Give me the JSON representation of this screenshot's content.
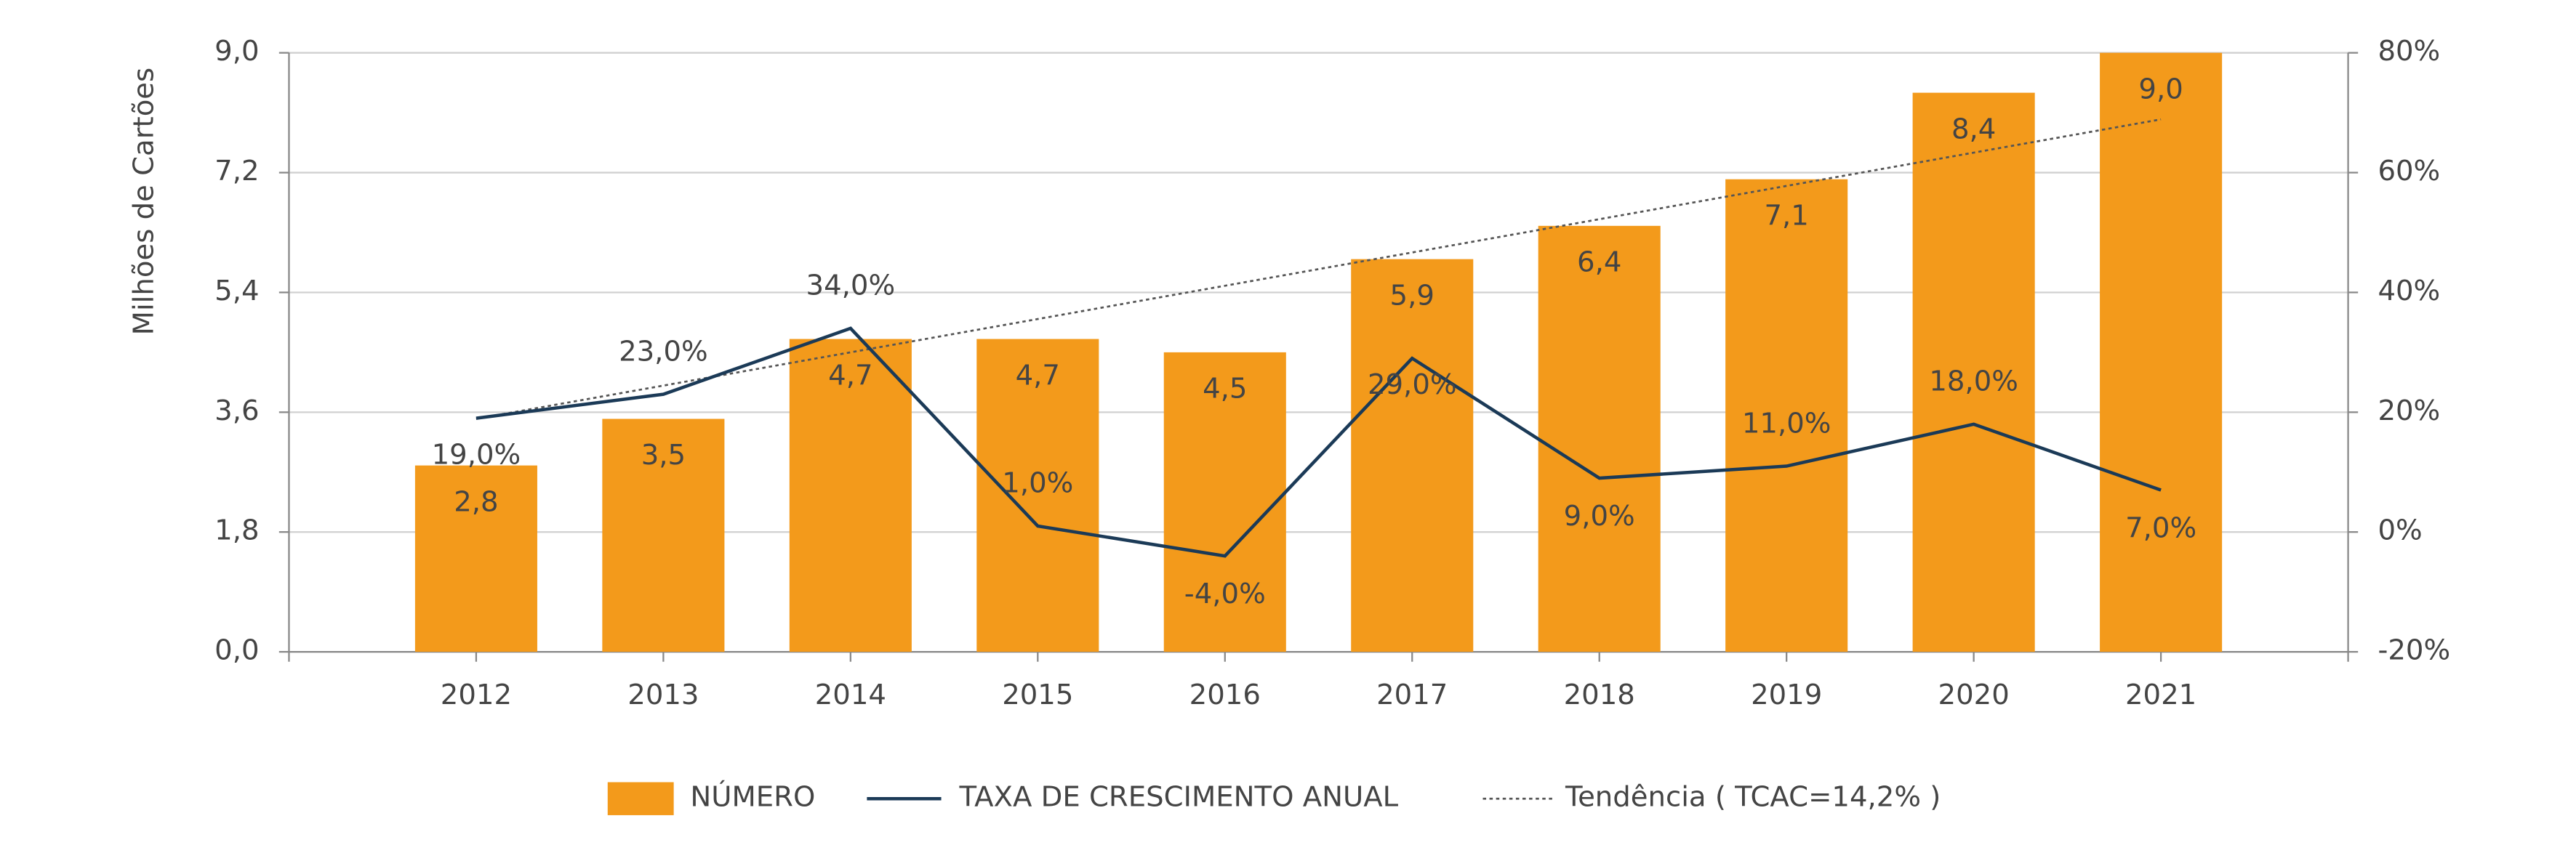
{
  "chart_data": {
    "type": "bar",
    "y_label": "Milhões de Cartões",
    "categories": [
      "2012",
      "2013",
      "2014",
      "2015",
      "2016",
      "2017",
      "2018",
      "2019",
      "2020",
      "2021"
    ],
    "series": [
      {
        "name": "NÚMERO",
        "type": "bar",
        "color": "#F39A1B",
        "values": [
          2.8,
          3.5,
          4.7,
          4.7,
          4.5,
          5.9,
          6.4,
          7.1,
          8.4,
          9.0
        ],
        "value_labels": [
          "2,8",
          "3,5",
          "4,7",
          "4,7",
          "4,5",
          "5,9",
          "6,4",
          "7,1",
          "8,4",
          "9,0"
        ]
      },
      {
        "name": "TAXA DE CRESCIMENTO ANUAL",
        "type": "line",
        "axis": "y2",
        "color": "#1B3A57",
        "values": [
          19,
          23,
          34,
          1,
          -4,
          29,
          9,
          11,
          18,
          7
        ],
        "value_labels": [
          "19,0%",
          "23,0%",
          "34,0%",
          "1,0%",
          "-4,0%",
          "29,0%",
          "9,0%",
          "11,0%",
          "18,0%",
          "7,0%"
        ]
      },
      {
        "name": "Tendência ( TCAC=14,2% )",
        "type": "trend",
        "color": "#555555",
        "values": [
          3.5,
          4.0,
          4.5,
          5.0,
          5.5,
          6.0,
          6.5,
          7.0,
          7.5,
          8.0
        ]
      }
    ],
    "ylim": [
      0,
      9
    ],
    "yticks": [
      {
        "value": 0,
        "label": "0,0"
      },
      {
        "value": 1.8,
        "label": "1,8"
      },
      {
        "value": 3.6,
        "label": "3,6"
      },
      {
        "value": 5.4,
        "label": "5,4"
      },
      {
        "value": 7.2,
        "label": "7,2"
      },
      {
        "value": 9,
        "label": "9,0"
      }
    ],
    "y2lim": [
      -20,
      80
    ],
    "y2ticks": [
      {
        "value": -20,
        "label": "-20%"
      },
      {
        "value": 0,
        "label": "0%"
      },
      {
        "value": 20,
        "label": "20%"
      },
      {
        "value": 40,
        "label": "40%"
      },
      {
        "value": 60,
        "label": "60%"
      },
      {
        "value": 80,
        "label": "80%"
      }
    ],
    "grid": true,
    "legend": "bottom"
  }
}
